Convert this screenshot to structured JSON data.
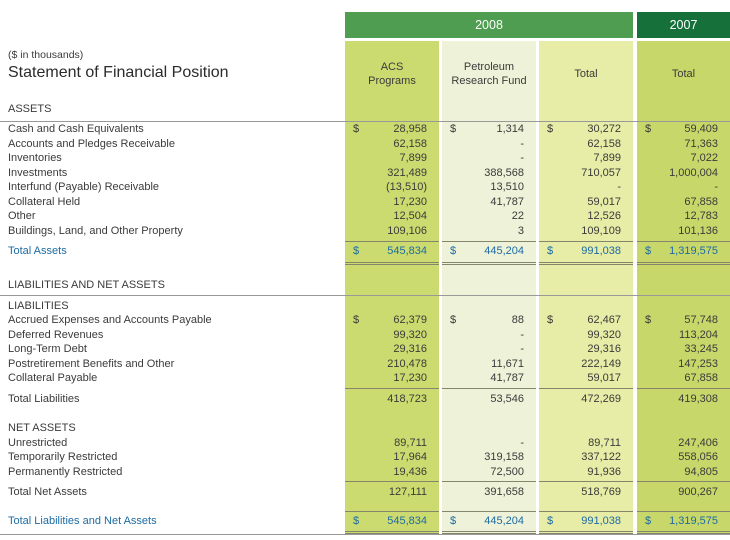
{
  "report": {
    "units_note": "($ in thousands)",
    "title": "Statement of Financial Position"
  },
  "columns": {
    "group_2008": "2008",
    "group_2007": "2007",
    "column_headers": [
      {
        "line1": "ACS",
        "line2": "Programs"
      },
      {
        "line1": "Petroleum",
        "line2": "Research Fund"
      },
      {
        "line1": "Total",
        "line2": ""
      },
      {
        "line1": "Total",
        "line2": ""
      }
    ]
  },
  "colors": {
    "band_2008": "#4e9d50",
    "band_2007": "#15703a",
    "col_acs": "#ccdb6f",
    "col_prf": "#eef2d8",
    "col_total_2008": "#e7eca6",
    "col_total_2007": "#c8d76a",
    "rule": "#999999",
    "cell_line": "#85856b",
    "accent_blue": "#1d6ba4",
    "text": "#3b3b3b"
  },
  "sections": {
    "assets": {
      "heading": "ASSETS",
      "rows": [
        {
          "label": "Cash and Cash Equivalents",
          "kind": "data",
          "dollar": true,
          "values": [
            "28,958",
            "1,314",
            "30,272",
            "59,409"
          ]
        },
        {
          "label": "Accounts and Pledges Receivable",
          "kind": "data",
          "dollar": false,
          "values": [
            "62,158",
            "-",
            "62,158",
            "71,363"
          ]
        },
        {
          "label": "Inventories",
          "kind": "data",
          "dollar": false,
          "values": [
            "7,899",
            "-",
            "7,899",
            "7,022"
          ]
        },
        {
          "label": "Investments",
          "kind": "data",
          "dollar": false,
          "values": [
            "321,489",
            "388,568",
            "710,057",
            "1,000,004"
          ]
        },
        {
          "label": "Interfund (Payable) Receivable",
          "kind": "data",
          "dollar": false,
          "values": [
            "(13,510)",
            "13,510",
            "-",
            "-"
          ]
        },
        {
          "label": "Collateral Held",
          "kind": "data",
          "dollar": false,
          "values": [
            "17,230",
            "41,787",
            "59,017",
            "67,858"
          ]
        },
        {
          "label": "Other",
          "kind": "data",
          "dollar": false,
          "values": [
            "12,504",
            "22",
            "12,526",
            "12,783"
          ]
        },
        {
          "label": "Buildings, Land, and Other Property",
          "kind": "data",
          "dollar": false,
          "values": [
            "109,106",
            "3",
            "109,109",
            "101,136"
          ]
        },
        {
          "label": "Total Assets",
          "kind": "grand",
          "dollar": true,
          "values": [
            "545,834",
            "445,204",
            "991,038",
            "1,319,575"
          ]
        }
      ]
    },
    "liabilities_and_net_assets": {
      "heading": "LIABILITIES AND NET ASSETS"
    },
    "liabilities": {
      "heading": "LIABILITIES",
      "rows": [
        {
          "label": "Accrued Expenses and Accounts Payable",
          "kind": "data",
          "dollar": true,
          "values": [
            "62,379",
            "88",
            "62,467",
            "57,748"
          ]
        },
        {
          "label": "Deferred Revenues",
          "kind": "data",
          "dollar": false,
          "values": [
            "99,320",
            "-",
            "99,320",
            "113,204"
          ]
        },
        {
          "label": "Long-Term Debt",
          "kind": "data",
          "dollar": false,
          "values": [
            "29,316",
            "-",
            "29,316",
            "33,245"
          ]
        },
        {
          "label": "Postretirement Benefits and Other",
          "kind": "data",
          "dollar": false,
          "values": [
            "210,478",
            "11,671",
            "222,149",
            "147,253"
          ]
        },
        {
          "label": "Collateral Payable",
          "kind": "data",
          "dollar": false,
          "values": [
            "17,230",
            "41,787",
            "59,017",
            "67,858"
          ]
        },
        {
          "label": "Total Liabilities",
          "kind": "sub",
          "dollar": false,
          "values": [
            "418,723",
            "53,546",
            "472,269",
            "419,308"
          ]
        }
      ]
    },
    "net_assets": {
      "heading": "NET ASSETS",
      "rows": [
        {
          "label": "Unrestricted",
          "kind": "data",
          "dollar": false,
          "values": [
            "89,711",
            "-",
            "89,711",
            "247,406"
          ]
        },
        {
          "label": "Temporarily Restricted",
          "kind": "data",
          "dollar": false,
          "values": [
            "17,964",
            "319,158",
            "337,122",
            "558,056"
          ]
        },
        {
          "label": "Permanently Restricted",
          "kind": "data",
          "dollar": false,
          "values": [
            "19,436",
            "72,500",
            "91,936",
            "94,805"
          ]
        },
        {
          "label": "Total Net Assets",
          "kind": "sub",
          "dollar": false,
          "values": [
            "127,111",
            "391,658",
            "518,769",
            "900,267"
          ]
        }
      ]
    },
    "closing": {
      "rows": [
        {
          "label": "Total Liabilities and Net Assets",
          "kind": "grand",
          "dollar": true,
          "values": [
            "545,834",
            "445,204",
            "991,038",
            "1,319,575"
          ]
        }
      ]
    }
  }
}
